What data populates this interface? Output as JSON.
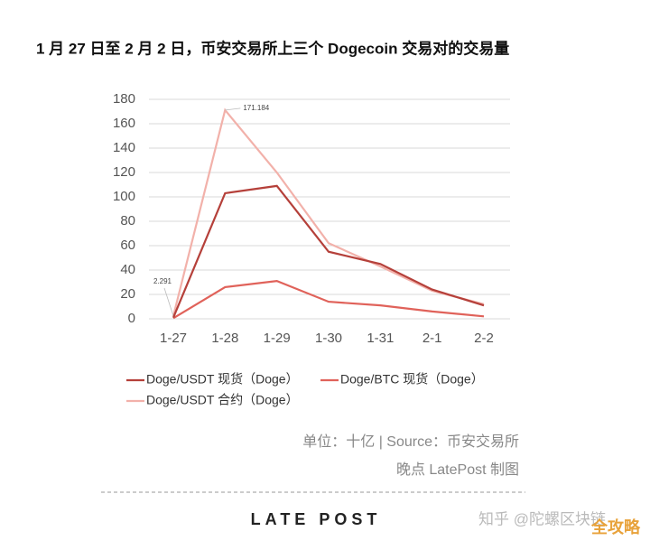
{
  "chart_data": {
    "type": "line",
    "title": "1 月 27 日至 2 月 2 日，币安交易所上三个 Dogecoin 交易对的交易量",
    "categories": [
      "1-27",
      "1-28",
      "1-29",
      "1-30",
      "1-31",
      "2-1",
      "2-2"
    ],
    "series": [
      {
        "name": "Doge/USDT 现货（Doge）",
        "color": "#b5403a",
        "values": [
          1,
          103,
          109,
          55,
          45,
          24,
          11
        ]
      },
      {
        "name": "Doge/BTC 现货（Doge）",
        "color": "#e0625a",
        "values": [
          0.5,
          26,
          31,
          14,
          11,
          6,
          2
        ]
      },
      {
        "name": "Doge/USDT 合约（Doge）",
        "color": "#f2b1aa",
        "values": [
          2.291,
          171.184,
          120,
          62,
          43,
          23,
          12
        ],
        "value_labels": [
          "2.291",
          "171.184",
          null,
          null,
          null,
          null,
          null
        ]
      }
    ],
    "ylim": [
      0,
      180
    ],
    "yticks": [
      0,
      20,
      40,
      60,
      80,
      100,
      120,
      140,
      160,
      180
    ],
    "grid": true
  },
  "footer": {
    "source": "单位：十亿 | Source：币安交易所",
    "credit": "晚点 LatePost 制图",
    "brand": "LATE POST",
    "watermark": "知乎 @陀螺区块链",
    "watermark2": "全攻略"
  }
}
